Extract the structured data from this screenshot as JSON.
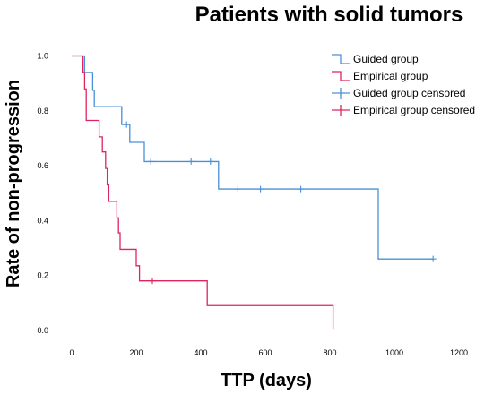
{
  "chart_data": {
    "type": "line",
    "title": "Patients with solid tumors",
    "xlabel": "TTP (days)",
    "ylabel": "Rate of non-progression",
    "xlim": [
      -50,
      1250
    ],
    "ylim": [
      -0.03,
      1.08
    ],
    "x_ticks": [
      0,
      200,
      400,
      600,
      800,
      1000,
      1200
    ],
    "y_ticks": [
      0.0,
      0.2,
      0.4,
      0.6,
      0.8,
      1.0
    ],
    "x_tick_labels": [
      "0",
      "200",
      "400",
      "600",
      "800",
      "1000",
      "1200"
    ],
    "y_tick_labels": [
      "0.0",
      "0.2",
      "0.4",
      "0.6",
      "0.8",
      "1.0"
    ],
    "grid": false,
    "legend_position": "top-right",
    "legend": [
      {
        "label": "Guided group",
        "kind": "step",
        "color": "#4a90d9"
      },
      {
        "label": "Empirical group",
        "kind": "step",
        "color": "#e0245e"
      },
      {
        "label": "Guided group censored",
        "kind": "censor",
        "color": "#4a90d9"
      },
      {
        "label": "Empirical group censored",
        "kind": "censor",
        "color": "#e0245e"
      }
    ],
    "series": [
      {
        "name": "Guided group",
        "color": "#4a90d9",
        "steps": [
          [
            0,
            1.0
          ],
          [
            40,
            0.94
          ],
          [
            65,
            0.875
          ],
          [
            70,
            0.815
          ],
          [
            155,
            0.75
          ],
          [
            180,
            0.685
          ],
          [
            225,
            0.615
          ],
          [
            455,
            0.515
          ],
          [
            950,
            0.26
          ],
          [
            1120,
            0.26
          ]
        ],
        "censored": [
          [
            170,
            0.75
          ],
          [
            245,
            0.615
          ],
          [
            370,
            0.615
          ],
          [
            430,
            0.615
          ],
          [
            515,
            0.515
          ],
          [
            585,
            0.515
          ],
          [
            710,
            0.515
          ],
          [
            1120,
            0.26
          ]
        ]
      },
      {
        "name": "Empirical group",
        "color": "#e0245e",
        "steps": [
          [
            0,
            1.0
          ],
          [
            35,
            0.94
          ],
          [
            40,
            0.88
          ],
          [
            45,
            0.765
          ],
          [
            85,
            0.705
          ],
          [
            95,
            0.65
          ],
          [
            105,
            0.59
          ],
          [
            110,
            0.53
          ],
          [
            115,
            0.47
          ],
          [
            140,
            0.41
          ],
          [
            145,
            0.355
          ],
          [
            150,
            0.295
          ],
          [
            200,
            0.235
          ],
          [
            210,
            0.18
          ],
          [
            420,
            0.09
          ],
          [
            810,
            0.09
          ],
          [
            810,
            0.005
          ]
        ],
        "censored": [
          [
            250,
            0.18
          ]
        ]
      }
    ]
  }
}
